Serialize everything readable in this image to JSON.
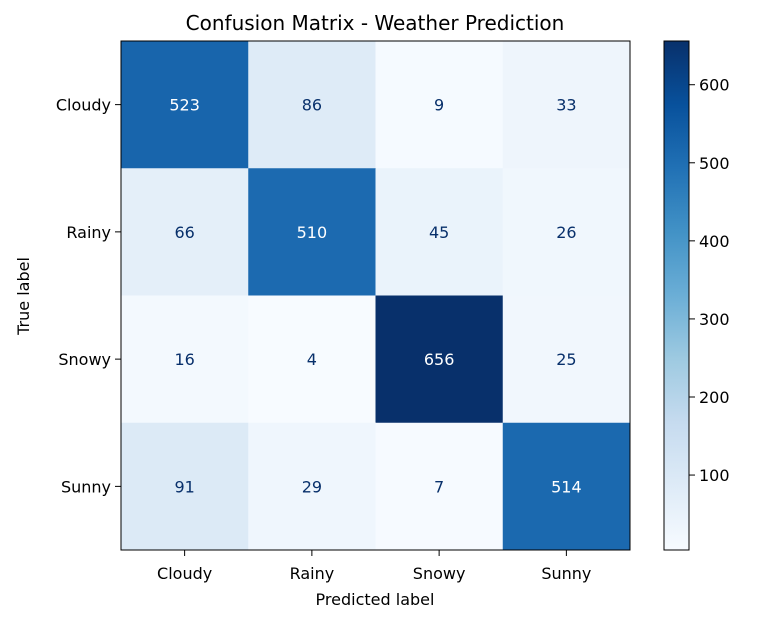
{
  "chart_data": {
    "type": "heatmap",
    "title": "Confusion Matrix - Weather Prediction",
    "xlabel": "Predicted label",
    "ylabel": "True label",
    "x_categories": [
      "Cloudy",
      "Rainy",
      "Snowy",
      "Sunny"
    ],
    "y_categories": [
      "Cloudy",
      "Rainy",
      "Snowy",
      "Sunny"
    ],
    "values": [
      [
        523,
        86,
        9,
        33
      ],
      [
        66,
        510,
        45,
        26
      ],
      [
        16,
        4,
        656,
        25
      ],
      [
        91,
        29,
        7,
        514
      ]
    ],
    "colormap": "Blues",
    "color_range": [
      4,
      656
    ],
    "colorbar_ticks": [
      100,
      200,
      300,
      400,
      500,
      600
    ],
    "colorbar_tick_labels": [
      "100",
      "200",
      "300",
      "400",
      "500",
      "600"
    ],
    "colors": {
      "low": "#f7fbff",
      "high": "#08306b",
      "text_dark_cell": "#ffffff",
      "text_light_cell": "#08306b"
    }
  }
}
